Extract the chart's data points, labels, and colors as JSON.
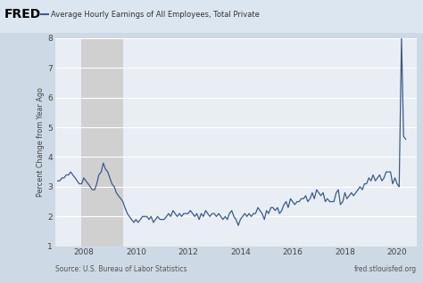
{
  "title": "Average Hourly Earnings of All Employees, Total Private",
  "ylabel": "Percent Change from Year Ago",
  "source_left": "Source: U.S. Bureau of Labor Statistics",
  "source_right": "fred.stlouisfed.org",
  "line_color": "#3d5a8e",
  "line_width": 0.9,
  "background_color": "#cdd9e5",
  "plot_bg_color": "#e8eef4",
  "recession_color": "#d0d0d0",
  "recession_start": 2007.92,
  "recession_end": 2009.5,
  "ylim": [
    1,
    8
  ],
  "yticks": [
    1,
    2,
    3,
    4,
    5,
    6,
    7,
    8
  ],
  "xlim_start": 2006.9,
  "xlim_end": 2020.75,
  "xticks": [
    2008,
    2010,
    2012,
    2014,
    2016,
    2018,
    2020
  ],
  "header_bg": "#dce6f0",
  "data": [
    [
      2007.0,
      3.2
    ],
    [
      2007.08,
      3.2
    ],
    [
      2007.17,
      3.3
    ],
    [
      2007.25,
      3.3
    ],
    [
      2007.33,
      3.4
    ],
    [
      2007.42,
      3.4
    ],
    [
      2007.5,
      3.5
    ],
    [
      2007.58,
      3.4
    ],
    [
      2007.67,
      3.3
    ],
    [
      2007.75,
      3.2
    ],
    [
      2007.83,
      3.1
    ],
    [
      2007.92,
      3.1
    ],
    [
      2008.0,
      3.3
    ],
    [
      2008.08,
      3.2
    ],
    [
      2008.17,
      3.1
    ],
    [
      2008.25,
      3.0
    ],
    [
      2008.33,
      2.9
    ],
    [
      2008.42,
      2.9
    ],
    [
      2008.5,
      3.1
    ],
    [
      2008.58,
      3.4
    ],
    [
      2008.67,
      3.5
    ],
    [
      2008.75,
      3.8
    ],
    [
      2008.83,
      3.6
    ],
    [
      2008.92,
      3.5
    ],
    [
      2009.0,
      3.3
    ],
    [
      2009.08,
      3.1
    ],
    [
      2009.17,
      3.0
    ],
    [
      2009.25,
      2.8
    ],
    [
      2009.33,
      2.7
    ],
    [
      2009.42,
      2.6
    ],
    [
      2009.5,
      2.5
    ],
    [
      2009.58,
      2.3
    ],
    [
      2009.67,
      2.1
    ],
    [
      2009.75,
      2.0
    ],
    [
      2009.83,
      1.9
    ],
    [
      2009.92,
      1.8
    ],
    [
      2010.0,
      1.9
    ],
    [
      2010.08,
      1.8
    ],
    [
      2010.17,
      1.9
    ],
    [
      2010.25,
      2.0
    ],
    [
      2010.33,
      2.0
    ],
    [
      2010.42,
      2.0
    ],
    [
      2010.5,
      1.9
    ],
    [
      2010.58,
      2.0
    ],
    [
      2010.67,
      1.8
    ],
    [
      2010.75,
      1.9
    ],
    [
      2010.83,
      2.0
    ],
    [
      2010.92,
      1.9
    ],
    [
      2011.0,
      1.9
    ],
    [
      2011.08,
      1.9
    ],
    [
      2011.17,
      2.0
    ],
    [
      2011.25,
      2.1
    ],
    [
      2011.33,
      2.0
    ],
    [
      2011.42,
      2.2
    ],
    [
      2011.5,
      2.1
    ],
    [
      2011.58,
      2.0
    ],
    [
      2011.67,
      2.1
    ],
    [
      2011.75,
      2.0
    ],
    [
      2011.83,
      2.1
    ],
    [
      2011.92,
      2.1
    ],
    [
      2012.0,
      2.1
    ],
    [
      2012.08,
      2.2
    ],
    [
      2012.17,
      2.1
    ],
    [
      2012.25,
      2.0
    ],
    [
      2012.33,
      2.1
    ],
    [
      2012.42,
      1.9
    ],
    [
      2012.5,
      2.1
    ],
    [
      2012.58,
      2.0
    ],
    [
      2012.67,
      2.2
    ],
    [
      2012.75,
      2.1
    ],
    [
      2012.83,
      2.0
    ],
    [
      2012.92,
      2.1
    ],
    [
      2013.0,
      2.1
    ],
    [
      2013.08,
      2.0
    ],
    [
      2013.17,
      2.1
    ],
    [
      2013.25,
      2.0
    ],
    [
      2013.33,
      1.9
    ],
    [
      2013.42,
      2.0
    ],
    [
      2013.5,
      1.9
    ],
    [
      2013.58,
      2.1
    ],
    [
      2013.67,
      2.2
    ],
    [
      2013.75,
      2.0
    ],
    [
      2013.83,
      1.9
    ],
    [
      2013.92,
      1.7
    ],
    [
      2014.0,
      1.9
    ],
    [
      2014.08,
      2.0
    ],
    [
      2014.17,
      2.1
    ],
    [
      2014.25,
      2.0
    ],
    [
      2014.33,
      2.1
    ],
    [
      2014.42,
      2.0
    ],
    [
      2014.5,
      2.1
    ],
    [
      2014.58,
      2.1
    ],
    [
      2014.67,
      2.3
    ],
    [
      2014.75,
      2.2
    ],
    [
      2014.83,
      2.1
    ],
    [
      2014.92,
      1.9
    ],
    [
      2015.0,
      2.2
    ],
    [
      2015.08,
      2.1
    ],
    [
      2015.17,
      2.3
    ],
    [
      2015.25,
      2.3
    ],
    [
      2015.33,
      2.2
    ],
    [
      2015.42,
      2.3
    ],
    [
      2015.5,
      2.1
    ],
    [
      2015.58,
      2.2
    ],
    [
      2015.67,
      2.4
    ],
    [
      2015.75,
      2.5
    ],
    [
      2015.83,
      2.3
    ],
    [
      2015.92,
      2.6
    ],
    [
      2016.0,
      2.5
    ],
    [
      2016.08,
      2.4
    ],
    [
      2016.17,
      2.5
    ],
    [
      2016.25,
      2.5
    ],
    [
      2016.33,
      2.6
    ],
    [
      2016.42,
      2.6
    ],
    [
      2016.5,
      2.7
    ],
    [
      2016.58,
      2.5
    ],
    [
      2016.67,
      2.6
    ],
    [
      2016.75,
      2.8
    ],
    [
      2016.83,
      2.6
    ],
    [
      2016.92,
      2.9
    ],
    [
      2017.0,
      2.8
    ],
    [
      2017.08,
      2.7
    ],
    [
      2017.17,
      2.8
    ],
    [
      2017.25,
      2.5
    ],
    [
      2017.33,
      2.6
    ],
    [
      2017.42,
      2.5
    ],
    [
      2017.5,
      2.5
    ],
    [
      2017.58,
      2.5
    ],
    [
      2017.67,
      2.8
    ],
    [
      2017.75,
      2.9
    ],
    [
      2017.83,
      2.4
    ],
    [
      2017.92,
      2.5
    ],
    [
      2018.0,
      2.8
    ],
    [
      2018.08,
      2.6
    ],
    [
      2018.17,
      2.7
    ],
    [
      2018.25,
      2.8
    ],
    [
      2018.33,
      2.7
    ],
    [
      2018.42,
      2.8
    ],
    [
      2018.5,
      2.9
    ],
    [
      2018.58,
      3.0
    ],
    [
      2018.67,
      2.9
    ],
    [
      2018.75,
      3.1
    ],
    [
      2018.83,
      3.1
    ],
    [
      2018.92,
      3.3
    ],
    [
      2019.0,
      3.2
    ],
    [
      2019.08,
      3.4
    ],
    [
      2019.17,
      3.2
    ],
    [
      2019.25,
      3.3
    ],
    [
      2019.33,
      3.4
    ],
    [
      2019.42,
      3.2
    ],
    [
      2019.5,
      3.3
    ],
    [
      2019.58,
      3.5
    ],
    [
      2019.67,
      3.5
    ],
    [
      2019.75,
      3.5
    ],
    [
      2019.83,
      3.1
    ],
    [
      2019.92,
      3.3
    ],
    [
      2020.0,
      3.1
    ],
    [
      2020.08,
      3.0
    ],
    [
      2020.17,
      8.0
    ],
    [
      2020.25,
      4.7
    ],
    [
      2020.33,
      4.6
    ]
  ]
}
